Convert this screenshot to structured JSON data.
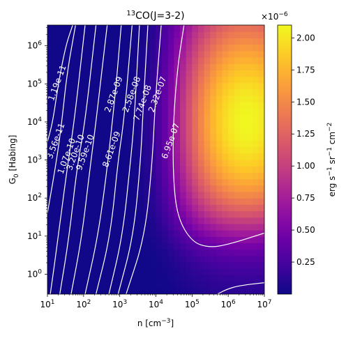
{
  "chart_data": {
    "type": "heatmap",
    "title": "13CO(J=3-2)",
    "title_parts": {
      "sup": "13",
      "rest": "CO(J=3-2)"
    },
    "xlabel": "n [cm^-3]",
    "xlabel_parts": {
      "main": "n [cm",
      "sup": "−3",
      "end": "]"
    },
    "ylabel": "G0 [Habing]",
    "ylabel_parts": {
      "main": "G",
      "sub": "0",
      "end": " [Habing]"
    },
    "x_scale": "log",
    "y_scale": "log",
    "xlim": [
      10,
      10000000
    ],
    "ylim": [
      0.3,
      3500000
    ],
    "x_ticks": [
      {
        "value": 10,
        "base": "10",
        "exp": "1"
      },
      {
        "value": 100,
        "base": "10",
        "exp": "2"
      },
      {
        "value": 1000,
        "base": "10",
        "exp": "3"
      },
      {
        "value": 10000,
        "base": "10",
        "exp": "4"
      },
      {
        "value": 100000,
        "base": "10",
        "exp": "5"
      },
      {
        "value": 1000000,
        "base": "10",
        "exp": "6"
      },
      {
        "value": 10000000,
        "base": "10",
        "exp": "7"
      }
    ],
    "y_ticks": [
      {
        "value": 1,
        "base": "10",
        "exp": "0"
      },
      {
        "value": 10,
        "base": "10",
        "exp": "1"
      },
      {
        "value": 100,
        "base": "10",
        "exp": "2"
      },
      {
        "value": 1000,
        "base": "10",
        "exp": "3"
      },
      {
        "value": 10000,
        "base": "10",
        "exp": "4"
      },
      {
        "value": 100000,
        "base": "10",
        "exp": "5"
      },
      {
        "value": 1000000,
        "base": "10",
        "exp": "6"
      }
    ],
    "colormap": "plasma",
    "colormap_stops": [
      "#0d0887",
      "#46039f",
      "#7201a8",
      "#9c179e",
      "#bd3786",
      "#d8576b",
      "#ed7953",
      "#fb9f3a",
      "#fdca26",
      "#f0f921"
    ],
    "colorbar": {
      "vmin": 0.0,
      "vmax": 2.1e-06,
      "label": "erg s^-1 sr^-1 cm^-2",
      "label_parts": [
        "erg s",
        "−1",
        " sr",
        "−1",
        " cm",
        "−2"
      ],
      "multiplier": {
        "base": "×10",
        "exp": "−6"
      },
      "ticks": [
        {
          "value": 0.25,
          "label": "0.25"
        },
        {
          "value": 0.5,
          "label": "0.50"
        },
        {
          "value": 0.75,
          "label": "0.75"
        },
        {
          "value": 1.0,
          "label": "1.00"
        },
        {
          "value": 1.25,
          "label": "1.25"
        },
        {
          "value": 1.5,
          "label": "1.50"
        },
        {
          "value": 1.75,
          "label": "1.75"
        },
        {
          "value": 2.0,
          "label": "2.00"
        }
      ]
    },
    "peak": {
      "n": 3000000,
      "G0": 10000,
      "value": 2.1e-06
    },
    "contours": [
      {
        "level": "1.19e-11",
        "points": [
          [
            10,
            3000
          ],
          [
            14,
            10000
          ],
          [
            20,
            100000
          ],
          [
            32,
            1000000
          ],
          [
            50,
            3500000
          ]
        ],
        "label_at": [
          22,
          100000
        ]
      },
      {
        "level": "3.56e-11",
        "points": [
          [
            10,
            40
          ],
          [
            18,
            1000
          ],
          [
            25,
            10000
          ],
          [
            35,
            200000
          ],
          [
            60,
            3500000
          ]
        ],
        "label_at": [
          20,
          3000
        ]
      },
      {
        "level": "1.07e-10",
        "points": [
          [
            12,
            0.3
          ],
          [
            20,
            10
          ],
          [
            35,
            600
          ],
          [
            55,
            10000
          ],
          [
            110,
            3500000
          ]
        ],
        "label_at": [
          40,
          1200
        ]
      },
      {
        "level": "3.20e-10",
        "points": [
          [
            22,
            0.3
          ],
          [
            40,
            10
          ],
          [
            65,
            600
          ],
          [
            110,
            10000
          ],
          [
            220,
            3500000
          ]
        ],
        "label_at": [
          70,
          1500
        ]
      },
      {
        "level": "9.59e-10",
        "points": [
          [
            45,
            0.3
          ],
          [
            90,
            10
          ],
          [
            150,
            600
          ],
          [
            220,
            10000
          ],
          [
            450,
            3500000
          ]
        ],
        "label_at": [
          130,
          1500
        ]
      },
      {
        "level": "2.87e-09",
        "points": [
          [
            110,
            0.3
          ],
          [
            250,
            10
          ],
          [
            450,
            600
          ],
          [
            750,
            50000
          ],
          [
            1100,
            3500000
          ]
        ],
        "label_at": [
          800,
          50000
        ]
      },
      {
        "level": "8.61e-09",
        "points": [
          [
            220,
            0.3
          ],
          [
            550,
            10
          ],
          [
            900,
            1000
          ],
          [
            1300,
            10000
          ],
          [
            2200,
            3500000
          ]
        ],
        "label_at": [
          700,
          1800
        ]
      },
      {
        "level": "2.58e-08",
        "points": [
          [
            500,
            0.3
          ],
          [
            1200,
            10
          ],
          [
            2000,
            1000
          ],
          [
            2500,
            10000
          ],
          [
            3500,
            3500000
          ]
        ],
        "label_at": [
          2500,
          50000
        ]
      },
      {
        "level": "7.74e-08",
        "points": [
          [
            900,
            0.3
          ],
          [
            2400,
            10
          ],
          [
            3800,
            1000
          ],
          [
            4500,
            30000
          ],
          [
            6000,
            3500000
          ]
        ],
        "label_at": [
          5000,
          30000
        ]
      },
      {
        "level": "2.32e-07",
        "points": [
          [
            1500,
            0.3
          ],
          [
            5000,
            10
          ],
          [
            8000,
            1000
          ],
          [
            9500,
            30000
          ],
          [
            14000,
            3500000
          ]
        ],
        "label_at": [
          13000,
          50000
        ]
      },
      {
        "level": "6.95e-07",
        "points": [
          [
            10000000,
            12
          ],
          [
            1000000,
            6
          ],
          [
            300000,
            5
          ],
          [
            100000,
            7
          ],
          [
            40000,
            30
          ],
          [
            30000,
            300
          ],
          [
            30000,
            10000
          ],
          [
            40000,
            300000
          ],
          [
            60000,
            3500000
          ]
        ],
        "label_at": [
          30000,
          3000
        ]
      },
      {
        "level": "",
        "points": [
          [
            10000000,
            0.6
          ],
          [
            2000000,
            0.5
          ],
          [
            900000,
            0.4
          ],
          [
            500000,
            0.3
          ]
        ],
        "label_at": null
      }
    ]
  }
}
